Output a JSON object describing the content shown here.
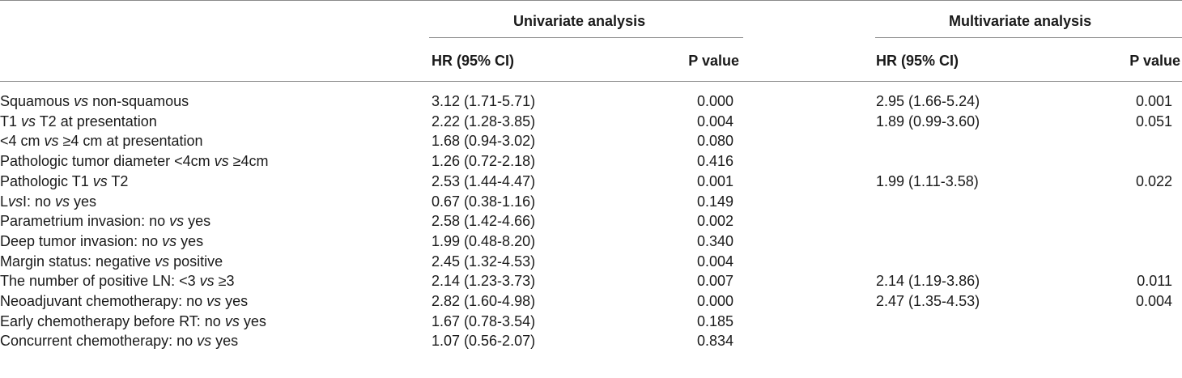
{
  "table": {
    "groups": {
      "univariate": "Univariate analysis",
      "multivariate": "Multivariate analysis"
    },
    "columns": {
      "uni_hr": "HR (95% CI)",
      "uni_p": "P value",
      "multi_hr": "HR (95% CI)",
      "multi_p": "P value"
    },
    "rows": [
      {
        "parts": [
          "Squamous ",
          "vs",
          " non-squamous"
        ],
        "uni_hr": "3.12 (1.71-5.71)",
        "uni_p": "0.000",
        "multi_hr": "2.95 (1.66-5.24)",
        "multi_p": "0.001"
      },
      {
        "parts": [
          "T1 ",
          "vs",
          " T2 at presentation"
        ],
        "uni_hr": "2.22 (1.28-3.85)",
        "uni_p": "0.004",
        "multi_hr": "1.89 (0.99-3.60)",
        "multi_p": "0.051"
      },
      {
        "parts": [
          "<4 cm ",
          "vs",
          " ≥4 cm at presentation"
        ],
        "uni_hr": "1.68 (0.94-3.02)",
        "uni_p": "0.080",
        "multi_hr": "",
        "multi_p": ""
      },
      {
        "parts": [
          "Pathologic tumor diameter <4cm ",
          "vs",
          " ≥4cm"
        ],
        "uni_hr": "1.26 (0.72-2.18)",
        "uni_p": "0.416",
        "multi_hr": "",
        "multi_p": ""
      },
      {
        "parts": [
          "Pathologic T1 ",
          "vs",
          " T2"
        ],
        "uni_hr": "2.53 (1.44-4.47)",
        "uni_p": "0.001",
        "multi_hr": "1.99 (1.11-3.58)",
        "multi_p": "0.022"
      },
      {
        "parts": [
          "L",
          "vs",
          "I: no ",
          "vs",
          " yes"
        ],
        "uni_hr": "0.67 (0.38-1.16)",
        "uni_p": "0.149",
        "multi_hr": "",
        "multi_p": ""
      },
      {
        "parts": [
          "Parametrium invasion: no ",
          "vs",
          " yes"
        ],
        "uni_hr": "2.58 (1.42-4.66)",
        "uni_p": "0.002",
        "multi_hr": "",
        "multi_p": ""
      },
      {
        "parts": [
          "Deep tumor invasion: no ",
          "vs",
          " yes"
        ],
        "uni_hr": "1.99 (0.48-8.20)",
        "uni_p": "0.340",
        "multi_hr": "",
        "multi_p": ""
      },
      {
        "parts": [
          "Margin status: negative ",
          "vs",
          " positive"
        ],
        "uni_hr": "2.45 (1.32-4.53)",
        "uni_p": "0.004",
        "multi_hr": "",
        "multi_p": ""
      },
      {
        "parts": [
          "The number of positive LN: <3 ",
          "vs",
          " ≥3"
        ],
        "uni_hr": "2.14 (1.23-3.73)",
        "uni_p": "0.007",
        "multi_hr": "2.14 (1.19-3.86)",
        "multi_p": "0.011"
      },
      {
        "parts": [
          "Neoadjuvant chemotherapy: no ",
          "vs",
          " yes"
        ],
        "uni_hr": "2.82 (1.60-4.98)",
        "uni_p": "0.000",
        "multi_hr": "2.47 (1.35-4.53)",
        "multi_p": "0.004"
      },
      {
        "parts": [
          "Early chemotherapy before RT: no ",
          "vs",
          " yes"
        ],
        "uni_hr": "1.67 (0.78-3.54)",
        "uni_p": "0.185",
        "multi_hr": "",
        "multi_p": ""
      },
      {
        "parts": [
          "Concurrent chemotherapy: no ",
          "vs",
          " yes"
        ],
        "uni_hr": "1.07 (0.56-2.07)",
        "uni_p": "0.834",
        "multi_hr": "",
        "multi_p": ""
      }
    ]
  }
}
